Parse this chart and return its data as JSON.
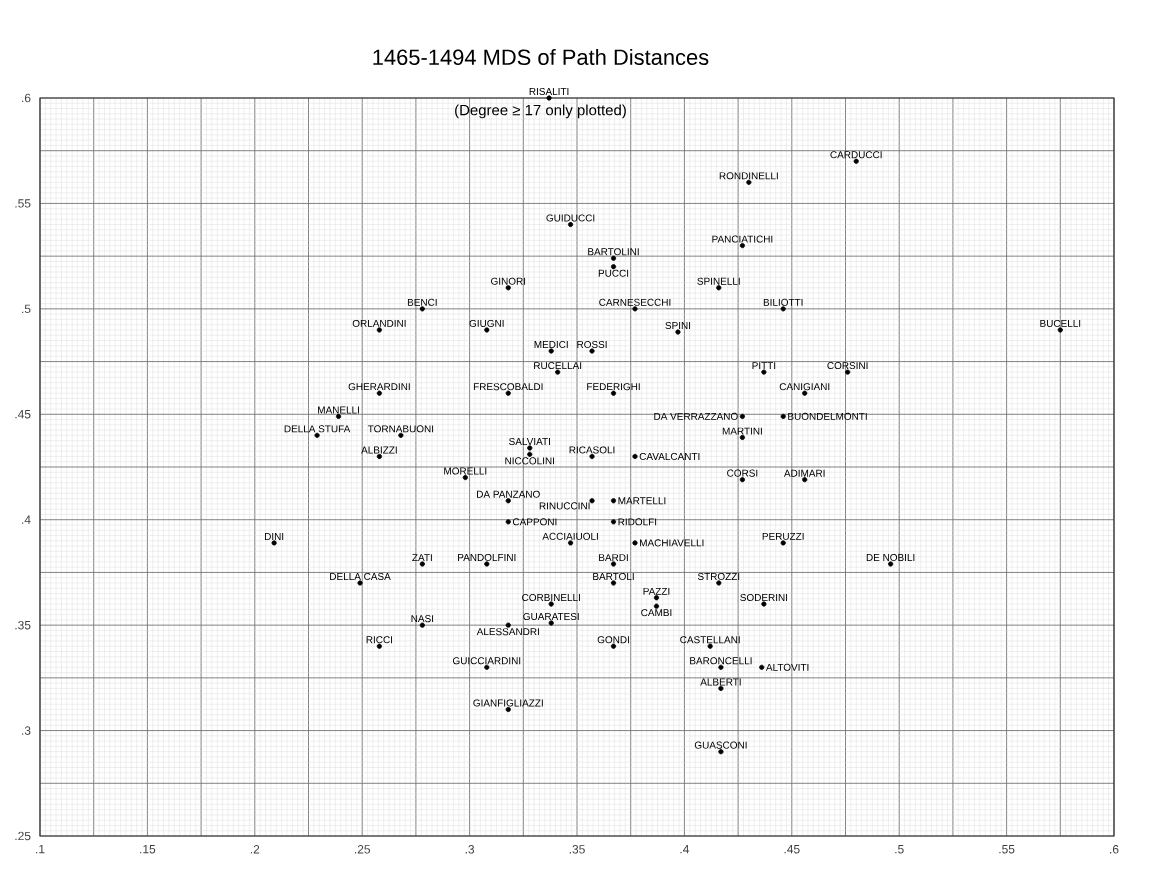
{
  "chart_data": {
    "type": "scatter",
    "title": "1465-1494 MDS of Path Distances",
    "subtitle": "(Degree ≥ 17 only plotted)",
    "series": [
      {
        "color": "#000000",
        "x": [
          0.48,
          0.43,
          0.347,
          0.427,
          0.367,
          0.367,
          0.318,
          0.416,
          0.278,
          0.377,
          0.446,
          0.308,
          0.258,
          0.397,
          0.575,
          0.338,
          0.357,
          0.341,
          0.437,
          0.476,
          0.258,
          0.318,
          0.367,
          0.456,
          0.239,
          0.427,
          0.446,
          0.268,
          0.229,
          0.427,
          0.258,
          0.328,
          0.328,
          0.357,
          0.377,
          0.298,
          0.427,
          0.456,
          0.318,
          0.357,
          0.367,
          0.318,
          0.367,
          0.209,
          0.347,
          0.377,
          0.446,
          0.278,
          0.308,
          0.367,
          0.496,
          0.249,
          0.367,
          0.416,
          0.338,
          0.387,
          0.387,
          0.437,
          0.338,
          0.278,
          0.318,
          0.412,
          0.258,
          0.367,
          0.417,
          0.436,
          0.308,
          0.417,
          0.318,
          0.417,
          0.337
        ],
        "values": [
          0.57,
          0.56,
          0.54,
          0.53,
          0.524,
          0.52,
          0.51,
          0.51,
          0.5,
          0.5,
          0.5,
          0.49,
          0.49,
          0.489,
          0.49,
          0.48,
          0.48,
          0.47,
          0.47,
          0.47,
          0.46,
          0.46,
          0.46,
          0.46,
          0.449,
          0.449,
          0.449,
          0.44,
          0.44,
          0.439,
          0.43,
          0.434,
          0.431,
          0.43,
          0.43,
          0.42,
          0.419,
          0.419,
          0.409,
          0.409,
          0.409,
          0.399,
          0.399,
          0.389,
          0.389,
          0.389,
          0.389,
          0.379,
          0.379,
          0.379,
          0.379,
          0.37,
          0.37,
          0.37,
          0.36,
          0.363,
          0.359,
          0.36,
          0.351,
          0.35,
          0.35,
          0.34,
          0.34,
          0.34,
          0.33,
          0.33,
          0.33,
          0.32,
          0.31,
          0.29,
          0.6
        ]
      }
    ],
    "annotations": [
      {
        "text": "CARDUCCI",
        "x": 0.48,
        "y": 0.57
      },
      {
        "text": "RONDINELLI",
        "x": 0.43,
        "y": 0.56
      },
      {
        "text": "GUIDUCCI",
        "x": 0.347,
        "y": 0.54
      },
      {
        "text": "PANCIATICHI",
        "x": 0.427,
        "y": 0.53
      },
      {
        "text": "BARTOLINI",
        "x": 0.367,
        "y": 0.524
      },
      {
        "text": "PUCCI",
        "x": 0.367,
        "y": 0.52
      },
      {
        "text": "GINORI",
        "x": 0.318,
        "y": 0.51
      },
      {
        "text": "SPINELLI",
        "x": 0.416,
        "y": 0.51
      },
      {
        "text": "BENCI",
        "x": 0.278,
        "y": 0.5
      },
      {
        "text": "CARNESECCHI",
        "x": 0.377,
        "y": 0.5
      },
      {
        "text": "BILIOTTI",
        "x": 0.446,
        "y": 0.5
      },
      {
        "text": "GIUGNI",
        "x": 0.308,
        "y": 0.49
      },
      {
        "text": "ORLANDINI",
        "x": 0.258,
        "y": 0.49
      },
      {
        "text": "SPINI",
        "x": 0.397,
        "y": 0.489
      },
      {
        "text": "BUCELLI",
        "x": 0.575,
        "y": 0.49
      },
      {
        "text": "MEDICI",
        "x": 0.338,
        "y": 0.48
      },
      {
        "text": "ROSSI",
        "x": 0.357,
        "y": 0.48
      },
      {
        "text": "RUCELLAI",
        "x": 0.341,
        "y": 0.47
      },
      {
        "text": "PITTI",
        "x": 0.437,
        "y": 0.47
      },
      {
        "text": "CORSINI",
        "x": 0.476,
        "y": 0.47
      },
      {
        "text": "GHERARDINI",
        "x": 0.258,
        "y": 0.46
      },
      {
        "text": "FRESCOBALDI",
        "x": 0.318,
        "y": 0.46
      },
      {
        "text": "FEDERIGHI",
        "x": 0.367,
        "y": 0.46
      },
      {
        "text": "CANIGIANI",
        "x": 0.456,
        "y": 0.46
      },
      {
        "text": "MANELLI",
        "x": 0.239,
        "y": 0.449
      },
      {
        "text": "DA VERRAZZANO",
        "x": 0.427,
        "y": 0.449
      },
      {
        "text": "BUONDELMONTI",
        "x": 0.446,
        "y": 0.449
      },
      {
        "text": "TORNABUONI",
        "x": 0.268,
        "y": 0.44
      },
      {
        "text": "DELLA STUFA",
        "x": 0.229,
        "y": 0.44
      },
      {
        "text": "MARTINI",
        "x": 0.427,
        "y": 0.439
      },
      {
        "text": "ALBIZZI",
        "x": 0.258,
        "y": 0.43
      },
      {
        "text": "SALVIATI",
        "x": 0.328,
        "y": 0.434
      },
      {
        "text": "NICCOLINI",
        "x": 0.328,
        "y": 0.431
      },
      {
        "text": "RICASOLI",
        "x": 0.357,
        "y": 0.43
      },
      {
        "text": "CAVALCANTI",
        "x": 0.377,
        "y": 0.43
      },
      {
        "text": "MORELLI",
        "x": 0.298,
        "y": 0.42
      },
      {
        "text": "CORSI",
        "x": 0.427,
        "y": 0.419
      },
      {
        "text": "ADIMARI",
        "x": 0.456,
        "y": 0.419
      },
      {
        "text": "DA PANZANO",
        "x": 0.318,
        "y": 0.409
      },
      {
        "text": "RINUCCINI",
        "x": 0.357,
        "y": 0.409
      },
      {
        "text": "MARTELLI",
        "x": 0.367,
        "y": 0.409
      },
      {
        "text": "CAPPONI",
        "x": 0.318,
        "y": 0.399
      },
      {
        "text": "RIDOLFI",
        "x": 0.367,
        "y": 0.399
      },
      {
        "text": "DINI",
        "x": 0.209,
        "y": 0.389
      },
      {
        "text": "ACCIAIUOLI",
        "x": 0.347,
        "y": 0.389
      },
      {
        "text": "MACHIAVELLI",
        "x": 0.377,
        "y": 0.389
      },
      {
        "text": "PERUZZI",
        "x": 0.446,
        "y": 0.389
      },
      {
        "text": "ZATI",
        "x": 0.278,
        "y": 0.379
      },
      {
        "text": "PANDOLFINI",
        "x": 0.308,
        "y": 0.379
      },
      {
        "text": "BARDI",
        "x": 0.367,
        "y": 0.379
      },
      {
        "text": "DE NOBILI",
        "x": 0.496,
        "y": 0.379
      },
      {
        "text": "DELLA CASA",
        "x": 0.249,
        "y": 0.37
      },
      {
        "text": "BARTOLI",
        "x": 0.367,
        "y": 0.37
      },
      {
        "text": "STROZZI",
        "x": 0.416,
        "y": 0.37
      },
      {
        "text": "CORBINELLI",
        "x": 0.338,
        "y": 0.36
      },
      {
        "text": "PAZZI",
        "x": 0.387,
        "y": 0.363
      },
      {
        "text": "CAMBI",
        "x": 0.387,
        "y": 0.359
      },
      {
        "text": "SODERINI",
        "x": 0.437,
        "y": 0.36
      },
      {
        "text": "GUARATESI",
        "x": 0.338,
        "y": 0.351
      },
      {
        "text": "NASI",
        "x": 0.278,
        "y": 0.35
      },
      {
        "text": "ALESSANDRI",
        "x": 0.318,
        "y": 0.35
      },
      {
        "text": "CASTELLANI",
        "x": 0.412,
        "y": 0.34
      },
      {
        "text": "RICCI",
        "x": 0.258,
        "y": 0.34
      },
      {
        "text": "GONDI",
        "x": 0.367,
        "y": 0.34
      },
      {
        "text": "BARONCELLI",
        "x": 0.417,
        "y": 0.33
      },
      {
        "text": "ALTOVITI",
        "x": 0.436,
        "y": 0.33
      },
      {
        "text": "GUICCIARDINI",
        "x": 0.308,
        "y": 0.33
      },
      {
        "text": "ALBERTI",
        "x": 0.417,
        "y": 0.32
      },
      {
        "text": "GIANFIGLIAZZI",
        "x": 0.318,
        "y": 0.31
      },
      {
        "text": "GUASCONI",
        "x": 0.417,
        "y": 0.29
      },
      {
        "text": "RISALITI",
        "x": 0.337,
        "y": 0.6
      }
    ],
    "xlim": [
      0.1,
      0.6
    ],
    "ylim": [
      0.25,
      0.6
    ],
    "xticks": [
      {
        "value": 0.1,
        "label": ".1"
      },
      {
        "value": 0.125,
        "label": null
      },
      {
        "value": 0.15,
        "label": ".15"
      },
      {
        "value": 0.175,
        "label": null
      },
      {
        "value": 0.2,
        "label": ".2"
      },
      {
        "value": 0.225,
        "label": null
      },
      {
        "value": 0.25,
        "label": ".25"
      },
      {
        "value": 0.275,
        "label": null
      },
      {
        "value": 0.3,
        "label": ".3"
      },
      {
        "value": 0.325,
        "label": null
      },
      {
        "value": 0.35,
        "label": ".35"
      },
      {
        "value": 0.375,
        "label": null
      },
      {
        "value": 0.4,
        "label": ".4"
      },
      {
        "value": 0.425,
        "label": null
      },
      {
        "value": 0.45,
        "label": ".45"
      },
      {
        "value": 0.475,
        "label": null
      },
      {
        "value": 0.5,
        "label": ".5"
      },
      {
        "value": 0.525,
        "label": null
      },
      {
        "value": 0.55,
        "label": ".55"
      },
      {
        "value": 0.575,
        "label": null
      },
      {
        "value": 0.6,
        "label": ".6"
      }
    ],
    "yticks": [
      {
        "value": 0.25,
        "label": ".25"
      },
      {
        "value": 0.275,
        "label": null
      },
      {
        "value": 0.3,
        "label": ".3"
      },
      {
        "value": 0.325,
        "label": null
      },
      {
        "value": 0.35,
        "label": ".35"
      },
      {
        "value": 0.375,
        "label": null
      },
      {
        "value": 0.4,
        "label": ".4"
      },
      {
        "value": 0.425,
        "label": null
      },
      {
        "value": 0.45,
        "label": ".45"
      },
      {
        "value": 0.475,
        "label": null
      },
      {
        "value": 0.5,
        "label": ".5"
      },
      {
        "value": 0.525,
        "label": null
      },
      {
        "value": 0.55,
        "label": ".55"
      },
      {
        "value": 0.575,
        "label": null
      },
      {
        "value": 0.6,
        "label": ".6"
      }
    ],
    "grid": true,
    "marker": "circle"
  }
}
